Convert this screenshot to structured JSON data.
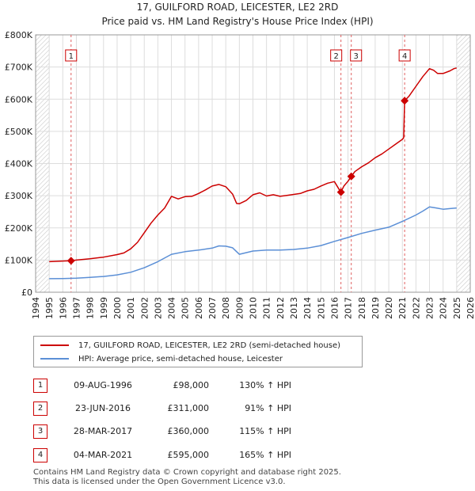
{
  "title_line1": "17, GUILFORD ROAD, LEICESTER, LE2 2RD",
  "title_line2": "Price paid vs. HM Land Registry's House Price Index (HPI)",
  "chart_data": {
    "type": "line",
    "title": "17, GUILFORD ROAD, LEICESTER, LE2 2RD — Price paid vs. HM Land Registry's House Price Index (HPI)",
    "xlabel": "",
    "ylabel": "",
    "xlim": [
      1994,
      2026
    ],
    "ylim": [
      0,
      800000
    ],
    "grid": true,
    "y_ticks": [
      {
        "value": 0,
        "label": "£0"
      },
      {
        "value": 100000,
        "label": "£100K"
      },
      {
        "value": 200000,
        "label": "£200K"
      },
      {
        "value": 300000,
        "label": "£300K"
      },
      {
        "value": 400000,
        "label": "£400K"
      },
      {
        "value": 500000,
        "label": "£500K"
      },
      {
        "value": 600000,
        "label": "£600K"
      },
      {
        "value": 700000,
        "label": "£700K"
      },
      {
        "value": 800000,
        "label": "£800K"
      }
    ],
    "x_ticks": [
      "1994",
      "1995",
      "1996",
      "1997",
      "1998",
      "1999",
      "2000",
      "2001",
      "2002",
      "2003",
      "2004",
      "2005",
      "2006",
      "2007",
      "2008",
      "2009",
      "2010",
      "2011",
      "2012",
      "2013",
      "2014",
      "2015",
      "2016",
      "2017",
      "2018",
      "2019",
      "2020",
      "2021",
      "2022",
      "2023",
      "2024",
      "2025",
      "2026"
    ],
    "hatched_regions": [
      [
        1994,
        1995
      ],
      [
        2025.0,
        2026
      ]
    ],
    "series": [
      {
        "name": "17, GUILFORD ROAD, LEICESTER, LE2 2RD (semi-detached house)",
        "color": "#cc0000",
        "x": [
          1995.0,
          1995.5,
          1996.0,
          1996.6,
          1997.0,
          1998.0,
          1999.0,
          2000.0,
          2000.5,
          2001.0,
          2001.5,
          2002.0,
          2002.5,
          2003.0,
          2003.5,
          2004.0,
          2004.5,
          2005.0,
          2005.5,
          2006.0,
          2006.5,
          2007.0,
          2007.5,
          2008.0,
          2008.5,
          2008.8,
          2009.0,
          2009.5,
          2010.0,
          2010.5,
          2011.0,
          2011.5,
          2012.0,
          2012.5,
          2013.0,
          2013.5,
          2014.0,
          2014.5,
          2015.0,
          2015.5,
          2016.0,
          2016.47,
          2016.7,
          2017.0,
          2017.24,
          2017.5,
          2018.0,
          2018.5,
          2019.0,
          2019.5,
          2020.0,
          2020.5,
          2021.0,
          2021.1,
          2021.17,
          2021.5,
          2022.0,
          2022.5,
          2023.0,
          2023.3,
          2023.6,
          2024.0,
          2024.5,
          2024.8,
          2025.0
        ],
        "values": [
          95000,
          96000,
          97000,
          98000,
          100000,
          104000,
          109000,
          117000,
          122000,
          135000,
          155000,
          185000,
          215000,
          240000,
          262000,
          298000,
          290000,
          297000,
          298000,
          307000,
          318000,
          330000,
          335000,
          328000,
          305000,
          276000,
          275000,
          285000,
          303000,
          309000,
          299000,
          303000,
          298000,
          301000,
          304000,
          307000,
          315000,
          320000,
          330000,
          339000,
          344000,
          311000,
          330000,
          345000,
          360000,
          375000,
          390000,
          402000,
          418000,
          430000,
          445000,
          460000,
          475000,
          480000,
          595000,
          610000,
          640000,
          670000,
          695000,
          690000,
          680000,
          680000,
          688000,
          695000,
          697000
        ]
      },
      {
        "name": "HPI: Average price, semi-detached house, Leicester",
        "color": "#5b8fd6",
        "x": [
          1995.0,
          1996.0,
          1997.0,
          1998.0,
          1999.0,
          2000.0,
          2001.0,
          2002.0,
          2003.0,
          2004.0,
          2005.0,
          2006.0,
          2007.0,
          2007.5,
          2008.0,
          2008.5,
          2009.0,
          2010.0,
          2011.0,
          2012.0,
          2013.0,
          2014.0,
          2015.0,
          2016.0,
          2017.0,
          2018.0,
          2019.0,
          2020.0,
          2021.0,
          2022.0,
          2022.5,
          2023.0,
          2023.5,
          2024.0,
          2024.5,
          2025.0
        ],
        "values": [
          42000,
          42500,
          43500,
          46000,
          49000,
          54000,
          62000,
          76000,
          95000,
          118000,
          126000,
          131000,
          137000,
          144000,
          143000,
          138000,
          118000,
          128000,
          131000,
          131000,
          133000,
          137000,
          145000,
          158000,
          170000,
          183000,
          193000,
          202000,
          220000,
          240000,
          252000,
          265000,
          262000,
          258000,
          260000,
          262000
        ]
      }
    ],
    "annotations": [
      {
        "label": "1",
        "x": 1996.61,
        "y": 98000
      },
      {
        "label": "2",
        "x": 2016.48,
        "y": 311000
      },
      {
        "label": "3",
        "x": 2017.24,
        "y": 360000
      },
      {
        "label": "4",
        "x": 2021.17,
        "y": 595000
      }
    ]
  },
  "legend": {
    "property_label": "17, GUILFORD ROAD, LEICESTER, LE2 2RD (semi-detached house)",
    "hpi_label": "HPI: Average price, semi-detached house, Leicester",
    "property_color": "#cc0000",
    "hpi_color": "#5b8fd6"
  },
  "transactions": [
    {
      "num": "1",
      "date": "09-AUG-1996",
      "price": "£98,000",
      "hpi": "130% ↑ HPI"
    },
    {
      "num": "2",
      "date": "23-JUN-2016",
      "price": "£311,000",
      "hpi": "91% ↑ HPI"
    },
    {
      "num": "3",
      "date": "28-MAR-2017",
      "price": "£360,000",
      "hpi": "115% ↑ HPI"
    },
    {
      "num": "4",
      "date": "04-MAR-2021",
      "price": "£595,000",
      "hpi": "165% ↑ HPI"
    }
  ],
  "footer": {
    "line1": "Contains HM Land Registry data © Crown copyright and database right 2025.",
    "line2": "This data is licensed under the Open Government Licence v3.0."
  }
}
